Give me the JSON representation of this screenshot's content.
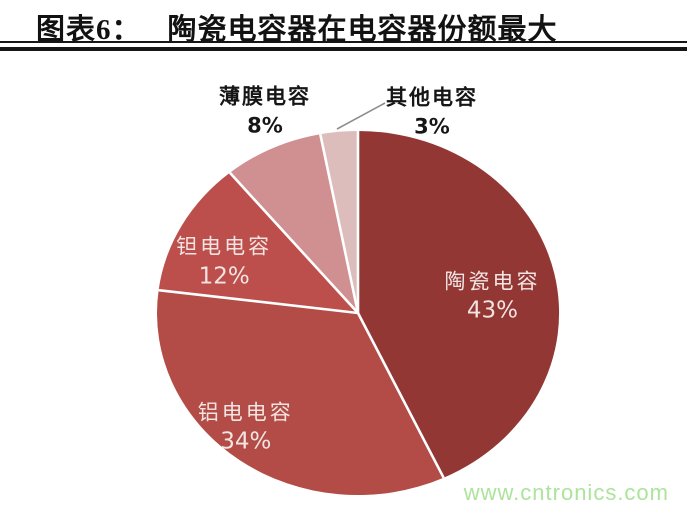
{
  "header": {
    "prefix": "图表6：",
    "title": "陶瓷电容器在电容器份额最大"
  },
  "chart_data": {
    "type": "pie",
    "title": "陶瓷电容器在电容器份额最大",
    "start_angle_deg": 0,
    "direction": "clockwise",
    "legend_position": "none",
    "background": "#ffffff",
    "separator_color": "#ffffff",
    "leader_line_color": "#8c8c8c",
    "slices": [
      {
        "label": "陶瓷电容",
        "value_pct": 43,
        "display": "43%",
        "color": "#923734",
        "label_placement": "inside"
      },
      {
        "label": "铝电电容",
        "value_pct": 34,
        "display": "34%",
        "color": "#b34c46",
        "label_placement": "inside"
      },
      {
        "label": "钽电电容",
        "value_pct": 12,
        "display": "12%",
        "color": "#bc4f4c",
        "label_placement": "inside"
      },
      {
        "label": "薄膜电容",
        "value_pct": 8,
        "display": "8%",
        "color": "#d08f90",
        "label_placement": "outside"
      },
      {
        "label": "其他电容",
        "value_pct": 3,
        "display": "3%",
        "color": "#ddbcbc",
        "label_placement": "outside"
      }
    ]
  },
  "watermark": {
    "text": "www.cntronics.com",
    "color": "#ace49b"
  }
}
